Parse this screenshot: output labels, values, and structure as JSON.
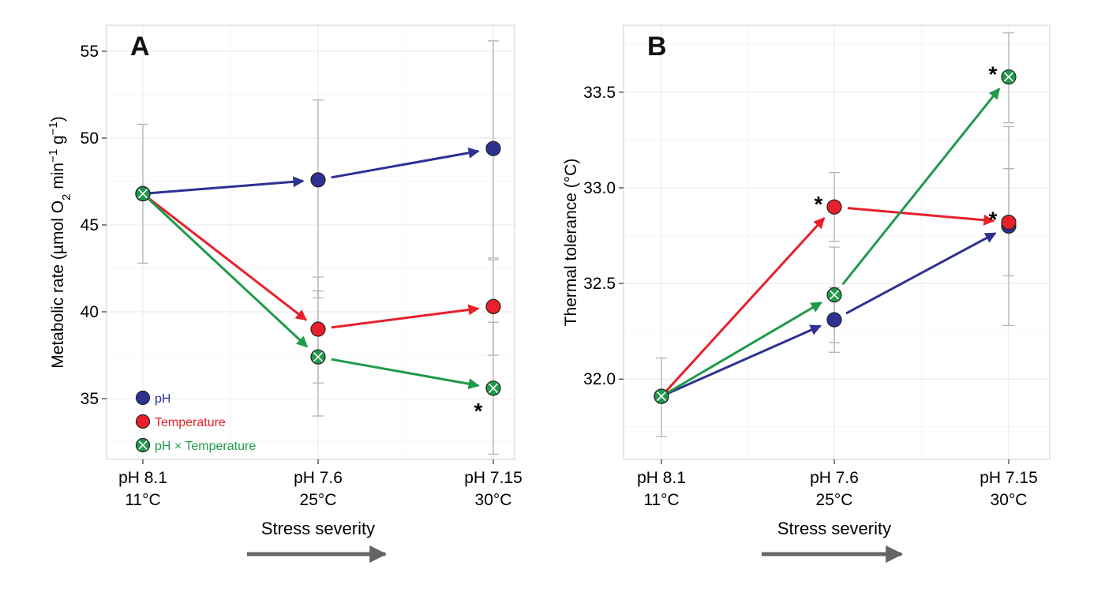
{
  "colors": {
    "pH": "#2e3192",
    "Temperature": "#e8202a",
    "pH x Temperature": "#1f9a4b",
    "errorbar": "#b3b3b3",
    "grid": "#ececec",
    "stress_arrow": "#646464"
  },
  "stress_label": "Stress severity",
  "chart_data": [
    {
      "type": "line",
      "panel_label": "A",
      "ylabel": "Metabolic rate (µmol O₂ min⁻¹ g⁻¹)",
      "ylabel_parts": [
        "Metabolic rate (µmol O",
        "2",
        " min",
        "−1",
        " g",
        "−1",
        ")"
      ],
      "ylim": [
        31.5,
        56.5
      ],
      "yticks": [
        35,
        40,
        45,
        50,
        55
      ],
      "categories": [
        [
          "pH 8.1",
          "11°C"
        ],
        [
          "pH 7.6",
          "25°C"
        ],
        [
          "pH 7.15",
          "30°C"
        ]
      ],
      "grid": true,
      "legend": {
        "position": "bottom-left",
        "entries": [
          "pH",
          "Temperature",
          "pH × Temperature"
        ]
      },
      "series": [
        {
          "name": "pH",
          "values": [
            46.8,
            47.6,
            49.4
          ],
          "err_low": [
            42.8,
            40.8,
            43.1
          ],
          "err_high": [
            50.8,
            52.2,
            55.6
          ],
          "sig": [
            false,
            false,
            false
          ]
        },
        {
          "name": "Temperature",
          "values": [
            46.8,
            39.0,
            40.3
          ],
          "err_low": [
            42.8,
            35.9,
            37.5
          ],
          "err_high": [
            50.8,
            42.0,
            43.0
          ],
          "sig": [
            false,
            false,
            false
          ]
        },
        {
          "name": "pH × Temperature",
          "values": [
            46.8,
            37.4,
            35.6
          ],
          "err_low": [
            42.8,
            34.0,
            31.8
          ],
          "err_high": [
            50.8,
            41.2,
            39.4
          ],
          "sig": [
            false,
            false,
            true
          ]
        }
      ]
    },
    {
      "type": "line",
      "panel_label": "B",
      "ylabel": "Thermal tolerance (°C)",
      "ylim": [
        31.58,
        33.85
      ],
      "yticks": [
        32.0,
        32.5,
        33.0,
        33.5
      ],
      "categories": [
        [
          "pH 8.1",
          "11°C"
        ],
        [
          "pH 7.6",
          "25°C"
        ],
        [
          "pH 7.15",
          "30°C"
        ]
      ],
      "grid": true,
      "series": [
        {
          "name": "pH",
          "values": [
            31.91,
            32.31,
            32.8
          ],
          "err_low": [
            31.7,
            32.14,
            32.28
          ],
          "err_high": [
            32.11,
            32.48,
            33.32
          ],
          "sig": [
            false,
            false,
            false
          ]
        },
        {
          "name": "Temperature",
          "values": [
            31.91,
            32.9,
            32.82
          ],
          "err_low": [
            31.7,
            32.72,
            32.54
          ],
          "err_high": [
            32.11,
            33.08,
            33.1
          ],
          "sig": [
            false,
            true,
            true
          ]
        },
        {
          "name": "pH × Temperature",
          "values": [
            31.91,
            32.44,
            33.58
          ],
          "err_low": [
            31.7,
            32.19,
            33.34
          ],
          "err_high": [
            32.11,
            32.69,
            33.81
          ],
          "sig": [
            false,
            false,
            true
          ]
        }
      ]
    }
  ]
}
